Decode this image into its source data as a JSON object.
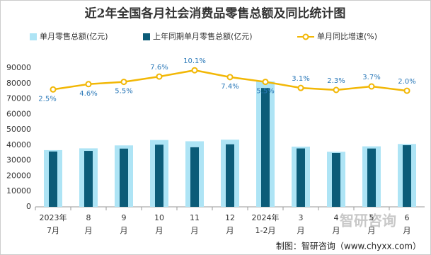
{
  "chart_data": {
    "type": "bar-line",
    "title": "近2年全国各月社会消费品零售总额及同比统计图",
    "categories": [
      [
        "2023年",
        "7月"
      ],
      [
        "8",
        "月"
      ],
      [
        "9",
        "月"
      ],
      [
        "10",
        "月"
      ],
      [
        "11",
        "月"
      ],
      [
        "12",
        "月"
      ],
      [
        "2024年",
        "1-2月"
      ],
      [
        "3",
        "月"
      ],
      [
        "4",
        "月"
      ],
      [
        "5",
        "月"
      ],
      [
        "6",
        "月"
      ]
    ],
    "series": [
      {
        "name": "单月零售总额(亿元)",
        "color": "#aee4f5",
        "values": [
          36761,
          37933,
          39826,
          43333,
          42505,
          43550,
          81307,
          39020,
          35699,
          39211,
          40732
        ]
      },
      {
        "name": "上年同期单月零售总额(亿元)",
        "color": "#0c5c78",
        "values": [
          35870,
          36258,
          37745,
          40271,
          38615,
          40542,
          77067,
          37855,
          34910,
          37803,
          39951
        ]
      },
      {
        "name": "单月同比增速(%)",
        "color": "#f2b705",
        "axis": "y2",
        "values": [
          2.5,
          4.6,
          5.5,
          7.6,
          10.1,
          7.4,
          5.5,
          3.1,
          2.3,
          3.7,
          2.0
        ],
        "value_labels": [
          "2.5%",
          "4.6%",
          "5.5%",
          "7.6%",
          "10.1%",
          "7.4%",
          "5.5%",
          "3.1%",
          "2.3%",
          "3.7%",
          "2.0%"
        ]
      }
    ],
    "ylim": [
      0,
      90000
    ],
    "yticks": [
      0,
      10000,
      20000,
      30000,
      40000,
      50000,
      60000,
      70000,
      80000,
      90000
    ],
    "y2lim": [
      -44,
      11
    ],
    "watermark": "智研咨询",
    "source": "制图：智研咨询（www.chyxx.com）"
  }
}
